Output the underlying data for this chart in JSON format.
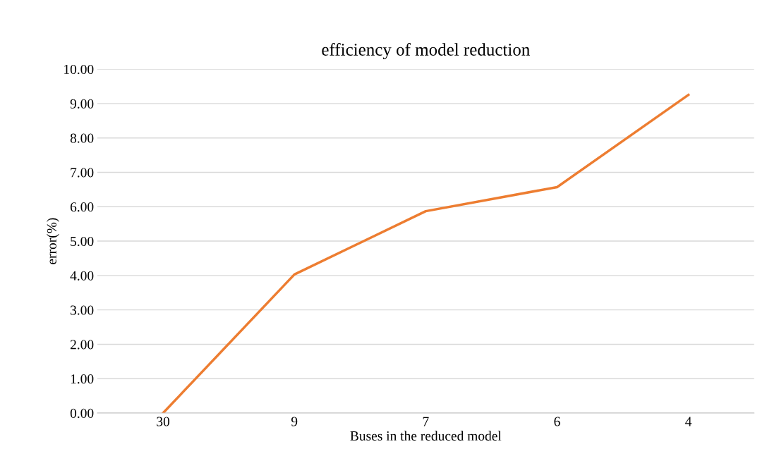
{
  "chart_data": {
    "type": "line",
    "title": "efficiency of model reduction",
    "xlabel": "Buses in the reduced model",
    "ylabel": "error(%)",
    "categories": [
      "30",
      "9",
      "7",
      "6",
      "4"
    ],
    "series": [
      {
        "color": "#ed7d31",
        "values": [
          0.0,
          4.03,
          5.87,
          6.57,
          9.25
        ]
      }
    ],
    "ylim": [
      0,
      10
    ],
    "yticks": [
      {
        "value": 0,
        "label": "0.00"
      },
      {
        "value": 1,
        "label": "1.00"
      },
      {
        "value": 2,
        "label": "2.00"
      },
      {
        "value": 3,
        "label": "3.00"
      },
      {
        "value": 4,
        "label": "4.00"
      },
      {
        "value": 5,
        "label": "5.00"
      },
      {
        "value": 6,
        "label": "6.00"
      },
      {
        "value": 7,
        "label": "7.00"
      },
      {
        "value": 8,
        "label": "8.00"
      },
      {
        "value": 9,
        "label": "9.00"
      },
      {
        "value": 10,
        "label": "10.00"
      }
    ],
    "grid": "y",
    "legend": false,
    "marker": "none",
    "line_style": "solid"
  }
}
